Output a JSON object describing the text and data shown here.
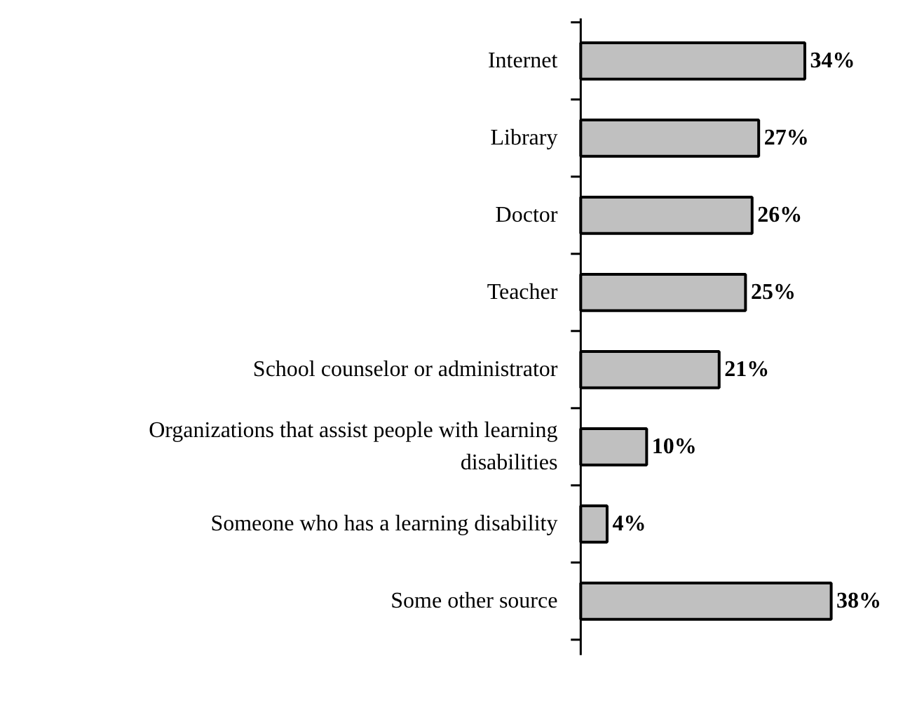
{
  "chart_data": {
    "type": "bar",
    "orientation": "horizontal",
    "categories": [
      "Internet",
      "Library",
      "Doctor",
      "Teacher",
      "School counselor or administrator",
      "Organizations that assist people with learning disabilities",
      "Someone who has a learning disability",
      "Some other source"
    ],
    "values": [
      34,
      27,
      26,
      25,
      21,
      10,
      4,
      38
    ],
    "value_labels": [
      "34%",
      "27%",
      "26%",
      "25%",
      "21%",
      "10%",
      "4%",
      "38%"
    ],
    "color": "#c0c0c0",
    "grid": false
  }
}
